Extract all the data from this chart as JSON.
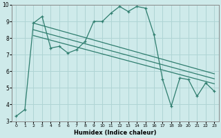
{
  "xlabel": "Humidex (Indice chaleur)",
  "bg_color": "#ceeaea",
  "line_color": "#2e7d6e",
  "grid_color": "#afd4d4",
  "xlim": [
    -0.5,
    23.5
  ],
  "ylim": [
    3,
    10
  ],
  "xtick_labels": [
    "0",
    "1",
    "2",
    "3",
    "4",
    "5",
    "6",
    "7",
    "8",
    "9",
    "10",
    "11",
    "12",
    "13",
    "14",
    "15",
    "16",
    "17",
    "18",
    "19",
    "20",
    "21",
    "22",
    "23"
  ],
  "xtick_pos": [
    0,
    1,
    2,
    3,
    4,
    5,
    6,
    7,
    8,
    9,
    10,
    11,
    12,
    13,
    14,
    15,
    16,
    17,
    18,
    19,
    20,
    21,
    22,
    23
  ],
  "ytick_pos": [
    3,
    4,
    5,
    6,
    7,
    8,
    9,
    10
  ],
  "series_x": [
    0,
    1,
    2,
    3,
    4,
    5,
    6,
    7,
    8,
    9,
    10,
    11,
    12,
    13,
    14,
    15,
    16,
    17,
    18,
    19,
    20,
    21,
    22,
    23
  ],
  "series_y": [
    3.3,
    3.7,
    8.9,
    9.3,
    7.4,
    7.5,
    7.1,
    7.3,
    7.8,
    9.0,
    9.0,
    9.5,
    9.9,
    9.6,
    9.9,
    9.8,
    8.2,
    5.5,
    3.9,
    5.6,
    5.5,
    4.5,
    5.3,
    4.8
  ],
  "trend1_x": [
    2,
    23
  ],
  "trend1_y": [
    8.9,
    5.85
  ],
  "trend2_x": [
    2,
    23
  ],
  "trend2_y": [
    8.5,
    5.55
  ],
  "trend3_x": [
    2,
    23
  ],
  "trend3_y": [
    8.15,
    5.25
  ]
}
